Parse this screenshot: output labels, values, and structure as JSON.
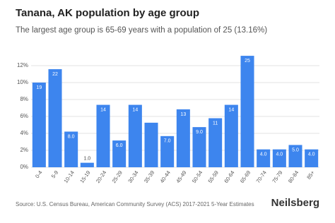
{
  "chart_data": {
    "type": "bar",
    "title": "Tanana, AK population by age group",
    "subtitle": "The largest age group is 65-69 years with a population of 25 (13.16%)",
    "categories": [
      "0-4",
      "5-9",
      "10-14",
      "15-19",
      "20-24",
      "25-29",
      "30-34",
      "35-39",
      "40-44",
      "45-49",
      "50-54",
      "55-59",
      "60-64",
      "65-69",
      "70-74",
      "75-79",
      "80-84",
      "85+"
    ],
    "values": [
      10.0,
      11.58,
      4.21,
      0.53,
      7.37,
      3.16,
      7.37,
      5.26,
      3.68,
      6.84,
      4.74,
      5.79,
      7.37,
      13.16,
      2.11,
      2.11,
      2.63,
      2.11
    ],
    "value_labels": [
      "19",
      "22",
      "8.0",
      "1.0",
      "14",
      "6.0",
      "14",
      null,
      "7.0",
      "13",
      "9.0",
      "11",
      "14",
      "25",
      "4.0",
      "4.0",
      "5.0",
      "4.0"
    ],
    "color": "#3d85ee",
    "ylim": [
      0,
      13.5
    ],
    "yticks": [
      {
        "value": 0,
        "label": "0%"
      },
      {
        "value": 2,
        "label": "2%"
      },
      {
        "value": 4,
        "label": "4%"
      },
      {
        "value": 6,
        "label": "6%"
      },
      {
        "value": 8,
        "label": "8%"
      },
      {
        "value": 10,
        "label": "10%"
      },
      {
        "value": 12,
        "label": "12%"
      }
    ],
    "grid": true,
    "source": "Source: U.S. Census Bureau, American Community Survey (ACS) 2017-2021 5-Year Estimates",
    "brand": "Neilsberg"
  }
}
